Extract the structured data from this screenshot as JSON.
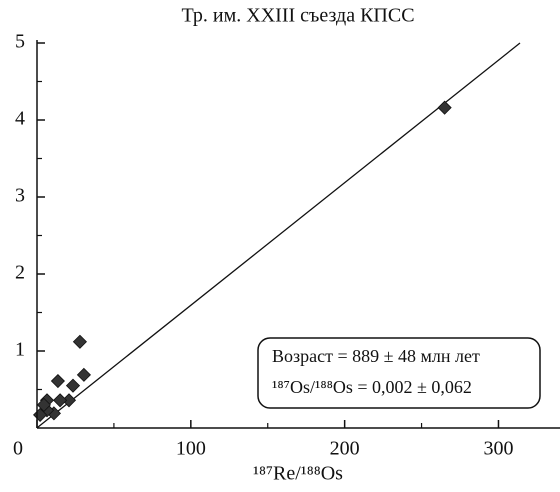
{
  "chart_data": {
    "type": "scatter",
    "title": "Тр. им. XXIII съезда КПСС",
    "x_label": "¹⁸⁷Re/¹⁸⁸Os",
    "xlim": [
      0,
      340
    ],
    "ylim": [
      0,
      5
    ],
    "xticks": [
      0,
      100,
      200,
      300
    ],
    "yticks": [
      1,
      2,
      3,
      4,
      5
    ],
    "x_minor_ticks": [
      50,
      150,
      250
    ],
    "y_minor_ticks": [
      0.5,
      1.5,
      2.5,
      3.5,
      4.5
    ],
    "color": "#333333",
    "x": [
      265,
      27.9,
      30.5,
      23.4,
      13.6,
      20.8,
      15,
      6.5,
      11,
      6.5,
      2,
      4.5
    ],
    "values": [
      4.16,
      1.12,
      0.69,
      0.55,
      0.61,
      0.36,
      0.36,
      0.36,
      0.19,
      0.23,
      0.17,
      0.3
    ],
    "fit_line": {
      "x": [
        0,
        314
      ],
      "y": [
        0.002,
        5
      ]
    },
    "annotations": [
      "Возраст = 889 ± 48 млн лет",
      "¹⁸⁷Os/¹⁸⁸Os = 0,002 ± 0,062"
    ]
  }
}
